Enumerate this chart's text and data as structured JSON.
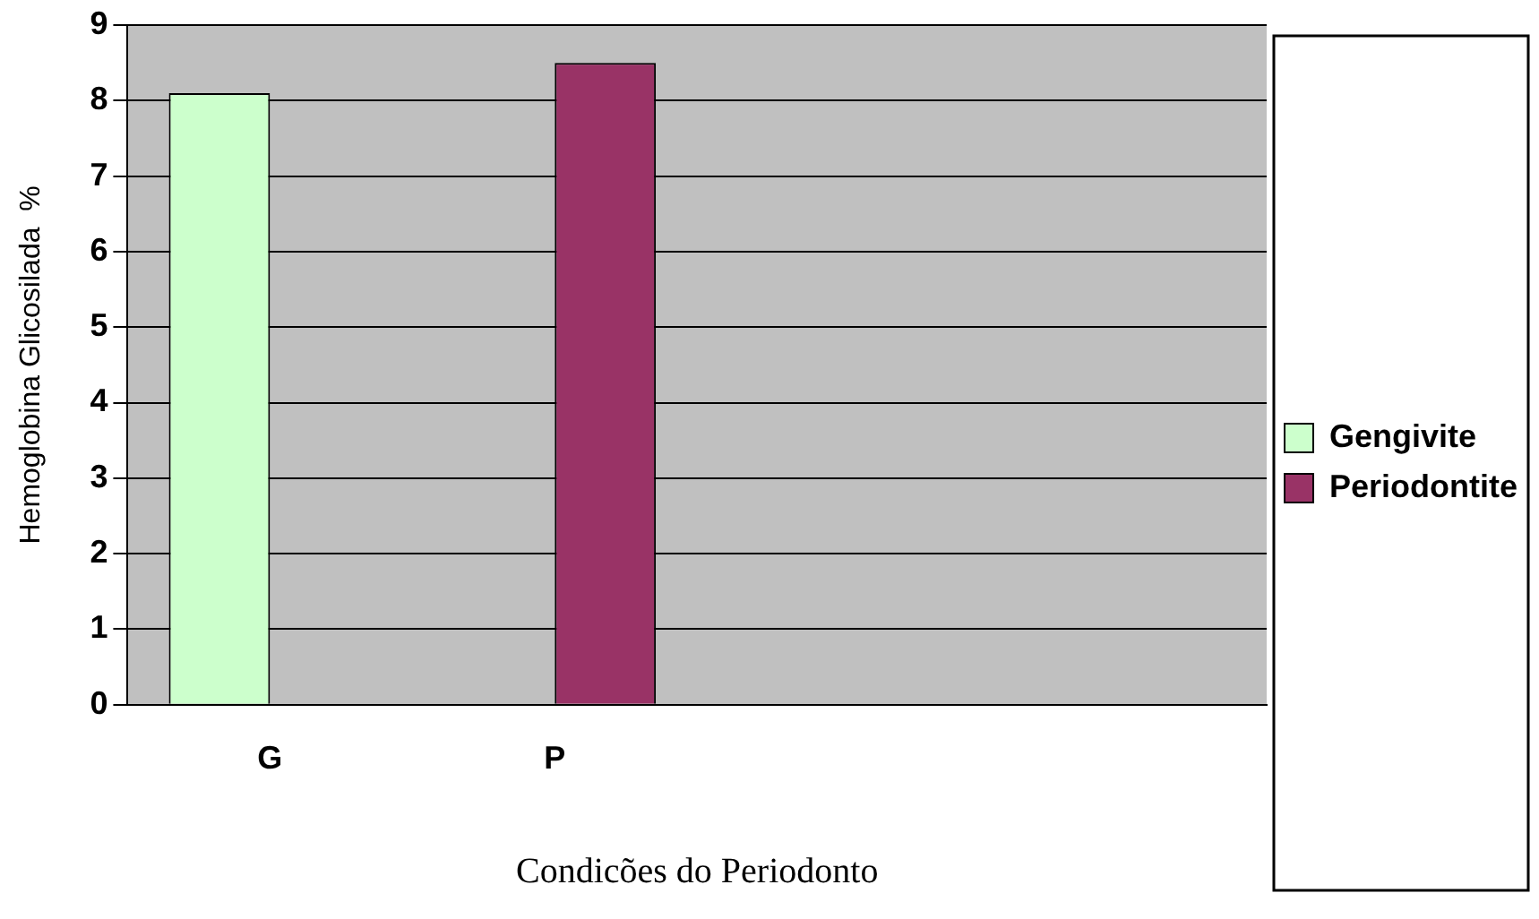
{
  "chart_data": {
    "type": "bar",
    "xlabel": "Condicões do Periodonto",
    "ylabel": "Hemoglobina Glicosilada  %",
    "categories": [
      "G",
      "P",
      null,
      null
    ],
    "series": [
      {
        "name": "Gengivite",
        "color": "#ccffcc",
        "values": [
          8.1,
          null,
          null,
          null
        ]
      },
      {
        "name": "Periodontite",
        "color": "#993366",
        "values": [
          null,
          8.5,
          null,
          null
        ]
      }
    ],
    "ylim": [
      0,
      9
    ],
    "yticks": [
      0,
      1,
      2,
      3,
      4,
      5,
      6,
      7,
      8,
      9
    ],
    "grid": "y",
    "legend": "right"
  }
}
